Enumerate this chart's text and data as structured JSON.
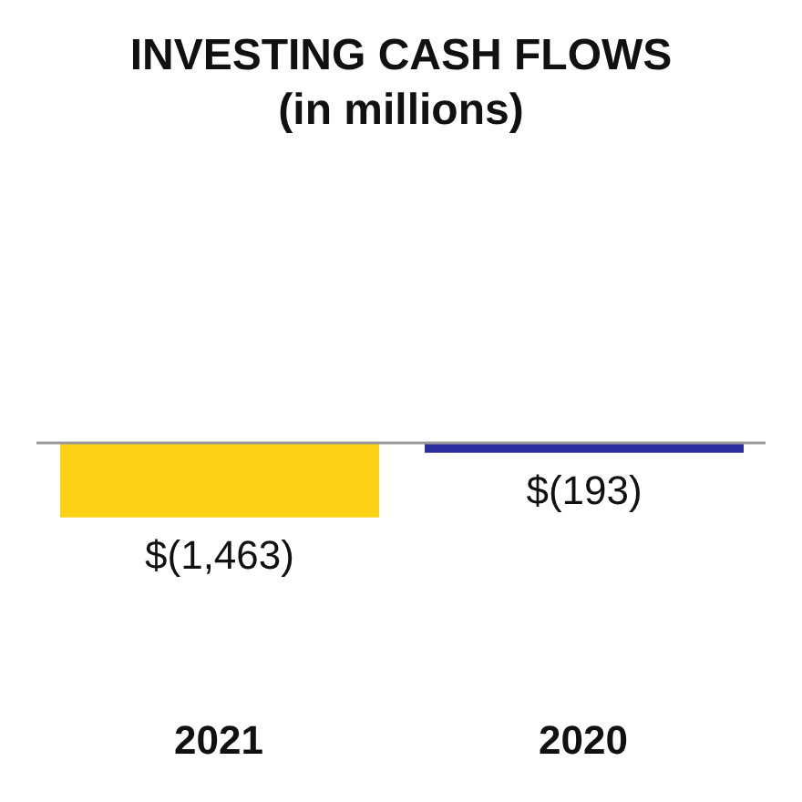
{
  "chart_data": {
    "type": "bar",
    "title": "INVESTING CASH FLOWS",
    "subtitle": "(in millions)",
    "categories": [
      "2021",
      "2020"
    ],
    "values": [
      -1463,
      -193
    ],
    "colors": [
      "#fcd116",
      "#2b2e9e"
    ],
    "value_labels": [
      "$(1,463)",
      "$(193)"
    ]
  }
}
